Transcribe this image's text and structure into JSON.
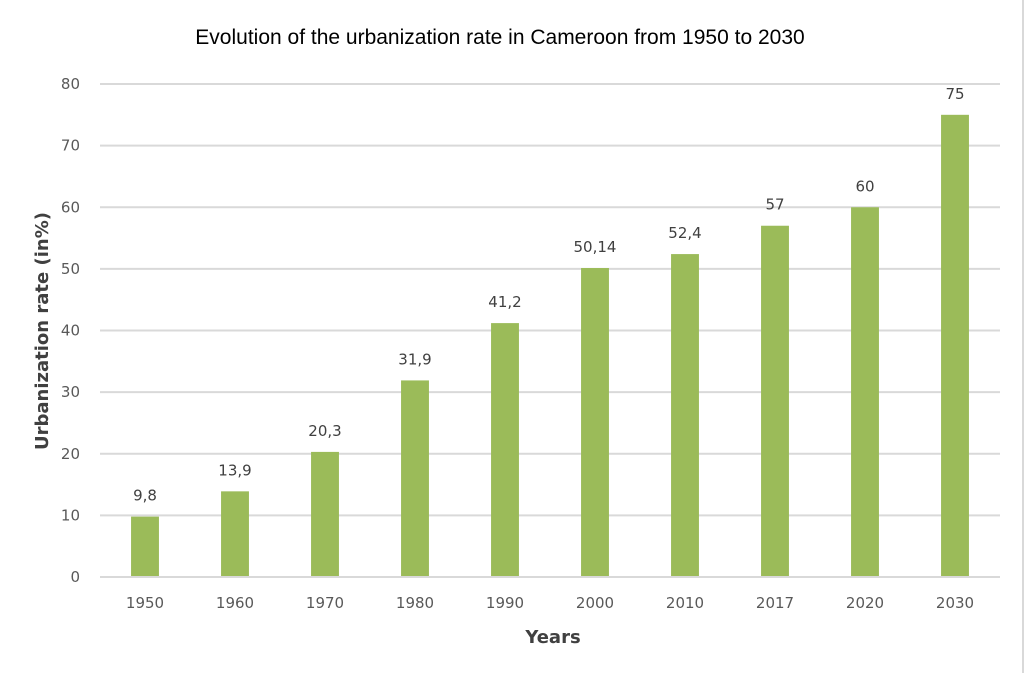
{
  "chart_data": {
    "type": "bar",
    "title": "Evolution of the urbanization rate in Cameroon from 1950 to 2030",
    "xlabel": "Years",
    "ylabel": "Urbanization rate (in%)",
    "categories": [
      "1950",
      "1960",
      "1970",
      "1980",
      "1990",
      "2000",
      "2010",
      "2017",
      "2020",
      "2030"
    ],
    "values": [
      9.8,
      13.9,
      20.3,
      31.9,
      41.2,
      50.14,
      52.4,
      57,
      60,
      75
    ],
    "data_labels": [
      "9,8",
      "13,9",
      "20,3",
      "31,9",
      "41,2",
      "50,14",
      "52,4",
      "57",
      "60",
      "75"
    ],
    "ylim": [
      0,
      80
    ],
    "yticks": [
      0,
      10,
      20,
      30,
      40,
      50,
      60,
      70,
      80
    ],
    "grid": true,
    "legend": "none",
    "bar_color": "#9bbb59"
  }
}
